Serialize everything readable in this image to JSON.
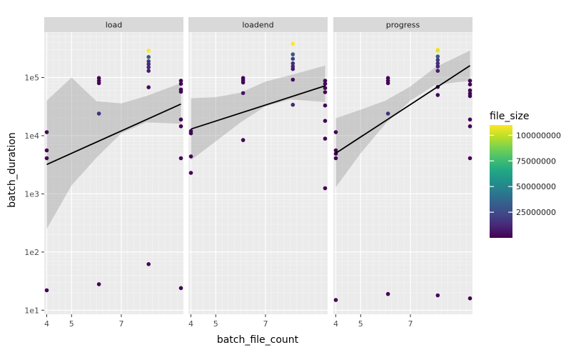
{
  "chart_data": {
    "type": "scatter",
    "xlabel": "batch_file_count",
    "ylabel": "batch_duration",
    "x_ticks": [
      4,
      5,
      7
    ],
    "xlim": [
      3.9,
      9.5
    ],
    "y_scale": "log10",
    "y_ticks": [
      {
        "value": 10,
        "label": "1e1"
      },
      {
        "value": 100,
        "label": "1e2"
      },
      {
        "value": 1000,
        "label": "1e3"
      },
      {
        "value": 10000,
        "label": "1e4"
      },
      {
        "value": 100000,
        "label": "1e5"
      }
    ],
    "ylim_log10": [
      0.93,
      5.78
    ],
    "grid": true,
    "legend": {
      "title": "file_size",
      "placement": "right",
      "colormap": "viridis",
      "range": [
        0,
        110000000
      ],
      "ticks": [
        {
          "value": 25000000,
          "label": "25000000"
        },
        {
          "value": 50000000,
          "label": "50000000"
        },
        {
          "value": 75000000,
          "label": "75000000"
        },
        {
          "value": 100000000,
          "label": "100000000"
        }
      ]
    },
    "facets": [
      {
        "label": "load",
        "trend": {
          "x": [
            4,
            9.4
          ],
          "y": [
            3200,
            35000
          ],
          "band_upper": [
            40000,
            100000,
            39000,
            36000,
            48000,
            80000
          ],
          "band_lower": [
            250,
            1400,
            4200,
            11000,
            17000,
            16000
          ],
          "band_x": [
            4,
            5,
            6,
            7,
            8,
            9.4
          ]
        },
        "points": [
          {
            "x": 4,
            "y": 11500,
            "size": 200000
          },
          {
            "x": 4,
            "y": 5600,
            "size": 200000
          },
          {
            "x": 4,
            "y": 4100,
            "size": 300000
          },
          {
            "x": 4,
            "y": 22,
            "size": 100000
          },
          {
            "x": 6.1,
            "y": 98000,
            "size": 1200000
          },
          {
            "x": 6.1,
            "y": 88000,
            "size": 1000000
          },
          {
            "x": 6.1,
            "y": 80000,
            "size": 1000000
          },
          {
            "x": 6.1,
            "y": 24000,
            "size": 15000000
          },
          {
            "x": 6.1,
            "y": 28,
            "size": 800000
          },
          {
            "x": 8.1,
            "y": 290000,
            "size": 110000000
          },
          {
            "x": 8.1,
            "y": 225000,
            "size": 30000000
          },
          {
            "x": 8.1,
            "y": 190000,
            "size": 18000000
          },
          {
            "x": 8.1,
            "y": 170000,
            "size": 14000000
          },
          {
            "x": 8.1,
            "y": 150000,
            "size": 12000000
          },
          {
            "x": 8.1,
            "y": 130000,
            "size": 9000000
          },
          {
            "x": 8.1,
            "y": 68000,
            "size": 3000000
          },
          {
            "x": 8.1,
            "y": 62,
            "size": 2000000
          },
          {
            "x": 9.4,
            "y": 88000,
            "size": 1000000
          },
          {
            "x": 9.4,
            "y": 78000,
            "size": 1000000
          },
          {
            "x": 9.4,
            "y": 62000,
            "size": 900000
          },
          {
            "x": 9.4,
            "y": 57000,
            "size": 800000
          },
          {
            "x": 9.4,
            "y": 19000,
            "size": 500000
          },
          {
            "x": 9.4,
            "y": 14500,
            "size": 400000
          },
          {
            "x": 9.4,
            "y": 4100,
            "size": 300000
          },
          {
            "x": 9.4,
            "y": 24,
            "size": 100000
          }
        ]
      },
      {
        "label": "loadend",
        "trend": {
          "x": [
            4,
            9.4
          ],
          "y": [
            13000,
            72000
          ],
          "band_upper": [
            44000,
            46000,
            55000,
            85000,
            110000,
            160000
          ],
          "band_lower": [
            3800,
            8000,
            17000,
            32000,
            42000,
            38000
          ],
          "band_x": [
            4,
            5,
            6,
            7,
            8,
            9.4
          ]
        },
        "points": [
          {
            "x": 4,
            "y": 12000,
            "size": 200000
          },
          {
            "x": 4,
            "y": 11000,
            "size": 200000
          },
          {
            "x": 4,
            "y": 4400,
            "size": 300000
          },
          {
            "x": 4,
            "y": 2300,
            "size": 100000
          },
          {
            "x": 6.1,
            "y": 98000,
            "size": 1200000
          },
          {
            "x": 6.1,
            "y": 90000,
            "size": 1000000
          },
          {
            "x": 6.1,
            "y": 82000,
            "size": 1000000
          },
          {
            "x": 6.1,
            "y": 54000,
            "size": 6000000
          },
          {
            "x": 6.1,
            "y": 8400,
            "size": 500000
          },
          {
            "x": 8.1,
            "y": 380000,
            "size": 110000000
          },
          {
            "x": 8.1,
            "y": 250000,
            "size": 30000000
          },
          {
            "x": 8.1,
            "y": 210000,
            "size": 20000000
          },
          {
            "x": 8.1,
            "y": 175000,
            "size": 14000000
          },
          {
            "x": 8.1,
            "y": 155000,
            "size": 12000000
          },
          {
            "x": 8.1,
            "y": 140000,
            "size": 9000000
          },
          {
            "x": 8.1,
            "y": 92000,
            "size": 3000000
          },
          {
            "x": 8.1,
            "y": 34000,
            "size": 12000000
          },
          {
            "x": 9.4,
            "y": 88000,
            "size": 1000000
          },
          {
            "x": 9.4,
            "y": 78000,
            "size": 1000000
          },
          {
            "x": 9.4,
            "y": 66000,
            "size": 900000
          },
          {
            "x": 9.4,
            "y": 56000,
            "size": 800000
          },
          {
            "x": 9.4,
            "y": 33000,
            "size": 500000
          },
          {
            "x": 9.4,
            "y": 18000,
            "size": 400000
          },
          {
            "x": 9.4,
            "y": 8900,
            "size": 300000
          },
          {
            "x": 9.4,
            "y": 1250,
            "size": 100000
          }
        ]
      },
      {
        "label": "progress",
        "trend": {
          "x": [
            4,
            9.4
          ],
          "y": [
            5000,
            160000
          ],
          "band_upper": [
            20000,
            28000,
            40000,
            70000,
            150000,
            290000
          ],
          "band_lower": [
            1300,
            5000,
            16000,
            40000,
            75000,
            88000
          ],
          "band_x": [
            4,
            5,
            6,
            7,
            8,
            9.4
          ]
        },
        "points": [
          {
            "x": 4,
            "y": 11500,
            "size": 200000
          },
          {
            "x": 4,
            "y": 5600,
            "size": 200000
          },
          {
            "x": 4,
            "y": 4900,
            "size": 300000
          },
          {
            "x": 4,
            "y": 4100,
            "size": 300000
          },
          {
            "x": 4,
            "y": 15,
            "size": 100000
          },
          {
            "x": 6.1,
            "y": 98000,
            "size": 1200000
          },
          {
            "x": 6.1,
            "y": 88000,
            "size": 1000000
          },
          {
            "x": 6.1,
            "y": 80000,
            "size": 1000000
          },
          {
            "x": 6.1,
            "y": 24000,
            "size": 15000000
          },
          {
            "x": 6.1,
            "y": 19,
            "size": 800000
          },
          {
            "x": 8.1,
            "y": 300000,
            "size": 110000000
          },
          {
            "x": 8.1,
            "y": 290000,
            "size": 105000000
          },
          {
            "x": 8.1,
            "y": 230000,
            "size": 30000000
          },
          {
            "x": 8.1,
            "y": 200000,
            "size": 18000000
          },
          {
            "x": 8.1,
            "y": 175000,
            "size": 14000000
          },
          {
            "x": 8.1,
            "y": 155000,
            "size": 12000000
          },
          {
            "x": 8.1,
            "y": 130000,
            "size": 9000000
          },
          {
            "x": 8.1,
            "y": 69000,
            "size": 3000000
          },
          {
            "x": 8.1,
            "y": 50000,
            "size": 2000000
          },
          {
            "x": 8.1,
            "y": 18,
            "size": 2000000
          },
          {
            "x": 9.4,
            "y": 88000,
            "size": 1000000
          },
          {
            "x": 9.4,
            "y": 76000,
            "size": 1000000
          },
          {
            "x": 9.4,
            "y": 60000,
            "size": 900000
          },
          {
            "x": 9.4,
            "y": 53000,
            "size": 800000
          },
          {
            "x": 9.4,
            "y": 48000,
            "size": 700000
          },
          {
            "x": 9.4,
            "y": 19000,
            "size": 500000
          },
          {
            "x": 9.4,
            "y": 14500,
            "size": 400000
          },
          {
            "x": 9.4,
            "y": 4100,
            "size": 300000
          },
          {
            "x": 9.4,
            "y": 16,
            "size": 100000
          }
        ]
      }
    ]
  }
}
